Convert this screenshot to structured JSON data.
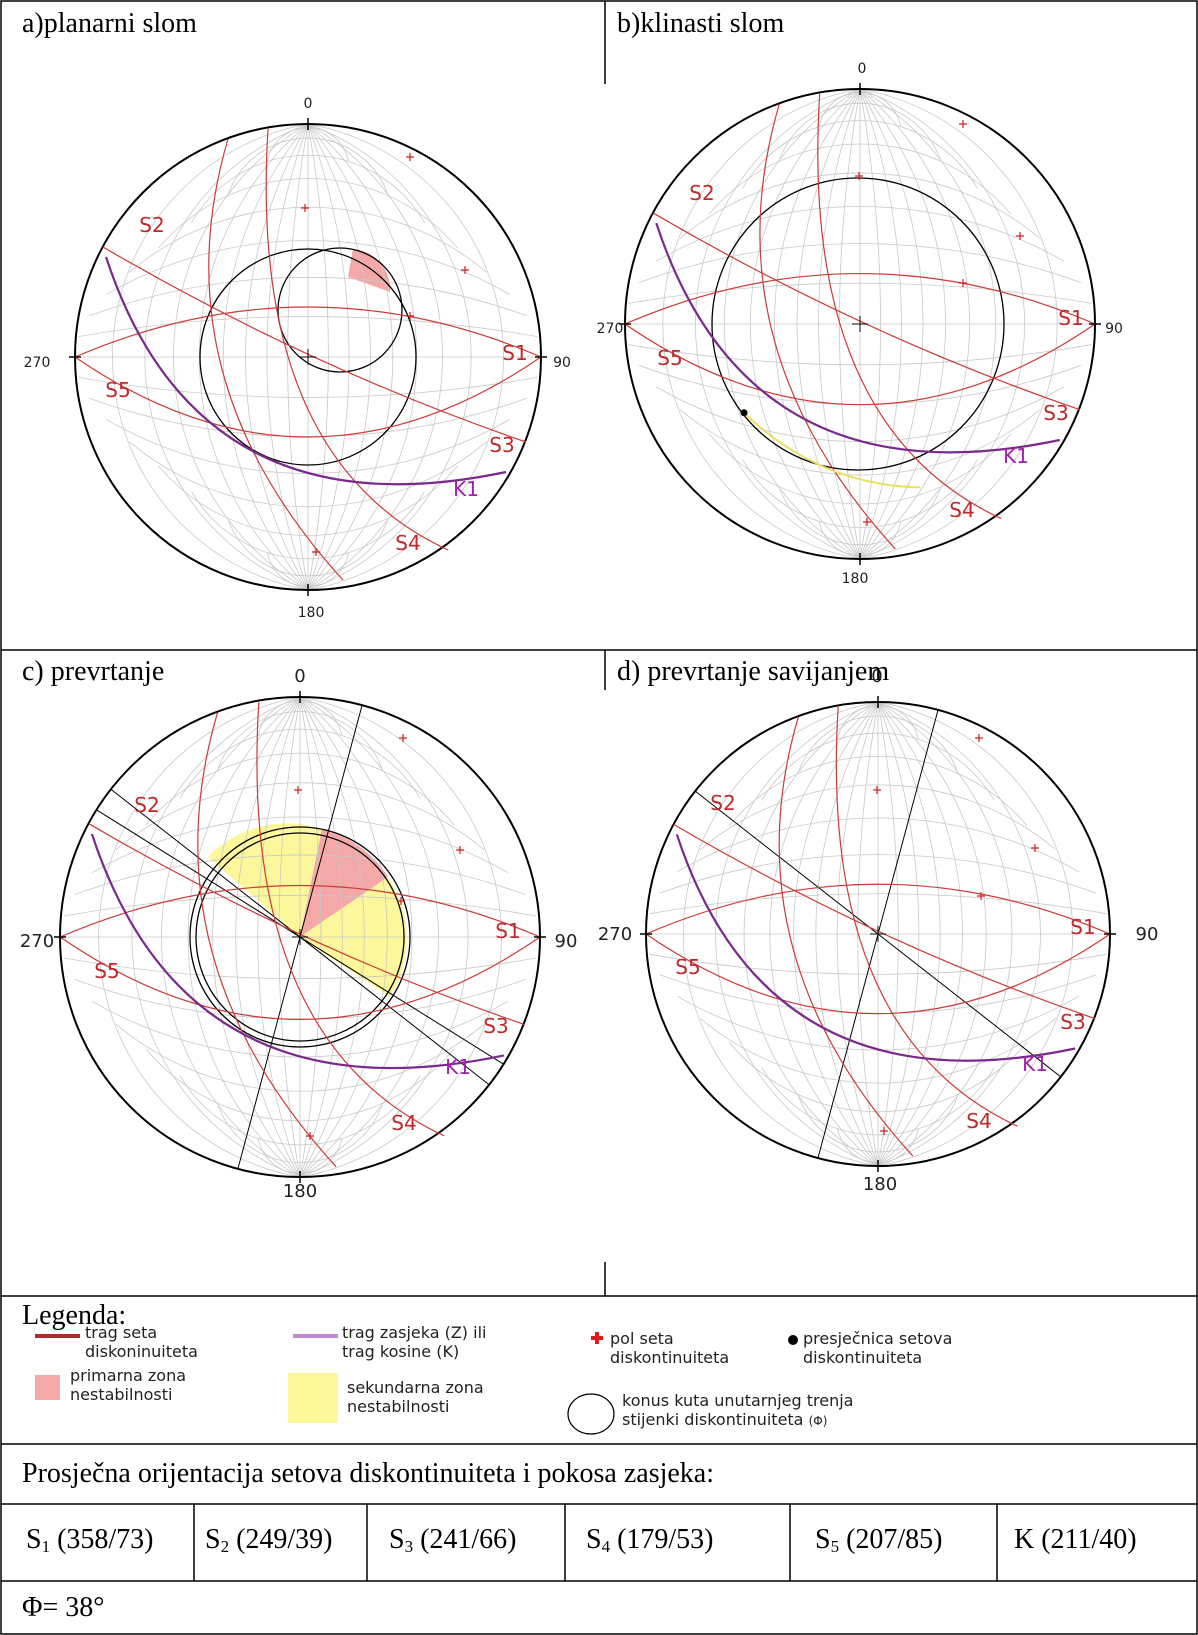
{
  "panels": [
    {
      "id": "a",
      "title": "a)planarni slom",
      "compass": {
        "n": "0",
        "e": "90",
        "s": "180",
        "w": "270"
      },
      "sets": [
        "S1",
        "S2",
        "S3",
        "S4",
        "S5"
      ],
      "slope": "K1"
    },
    {
      "id": "b",
      "title": "b)klinasti slom",
      "compass": {
        "n": "0",
        "e": "90",
        "s": "180",
        "w": "270"
      },
      "sets": [
        "S1",
        "S2",
        "S3",
        "S4",
        "S5"
      ],
      "slope": "K1"
    },
    {
      "id": "c",
      "title": "c) prevrtanje",
      "compass": {
        "n": "0",
        "e": "90",
        "s": "180",
        "w": "270"
      },
      "sets": [
        "S1",
        "S2",
        "S3",
        "S4",
        "S5"
      ],
      "slope": "K1"
    },
    {
      "id": "d",
      "title": "d) prevrtanje savijanjem",
      "compass": {
        "n": "0",
        "e": "90",
        "s": "180",
        "w": "270"
      },
      "sets": [
        "S1",
        "S2",
        "S3",
        "S4",
        "S5"
      ],
      "slope": "K1"
    }
  ],
  "legend": {
    "heading": "Legenda:",
    "items": [
      {
        "key": "set_trace",
        "label_1": "trag seta",
        "label_2": "diskoninuiteta"
      },
      {
        "key": "slope_trace",
        "label_1": "trag zasjeka (Z) ili",
        "label_2": "trag kosine (K)"
      },
      {
        "key": "pole",
        "label_1": "pol seta",
        "label_2": "diskontinuiteta"
      },
      {
        "key": "intersection",
        "label_1": "presječnica setova",
        "label_2": "diskontinuiteta"
      },
      {
        "key": "primary_zone",
        "label_1": "primarna zona",
        "label_2": "nestabilnosti"
      },
      {
        "key": "secondary_zone",
        "label_1": "sekundarna zona",
        "label_2": "nestabilnosti"
      },
      {
        "key": "friction_cone",
        "label_1": "konus kuta unutarnjeg trenja",
        "label_2": "stijenki diskontinuiteta",
        "label_3": "(Φ)"
      }
    ]
  },
  "orientation_heading": "Prosječna orijentacija setova diskontinuiteta i pokosa zasjeka:",
  "orientations": [
    {
      "name": "S",
      "sub": "1",
      "value": " (358/73)"
    },
    {
      "name": "S",
      "sub": "2",
      "value": " (249/39)"
    },
    {
      "name": "S",
      "sub": "3",
      "value": " (241/66)"
    },
    {
      "name": "S",
      "sub": "4",
      "value": " (179/53)"
    },
    {
      "name": "S",
      "sub": "5",
      "value": " (207/85)"
    },
    {
      "name": "K",
      "sub": "",
      "value": " (211/40)"
    }
  ],
  "phi": "Φ= 38°",
  "colors": {
    "set": "#cc3a3a",
    "set_label": "#c0282a",
    "slope": "#7a2a8c",
    "slope_label": "#a020b0",
    "primary": "#f4a8a8",
    "secondary": "#fbf79a",
    "grid": "#c8c8c8"
  }
}
